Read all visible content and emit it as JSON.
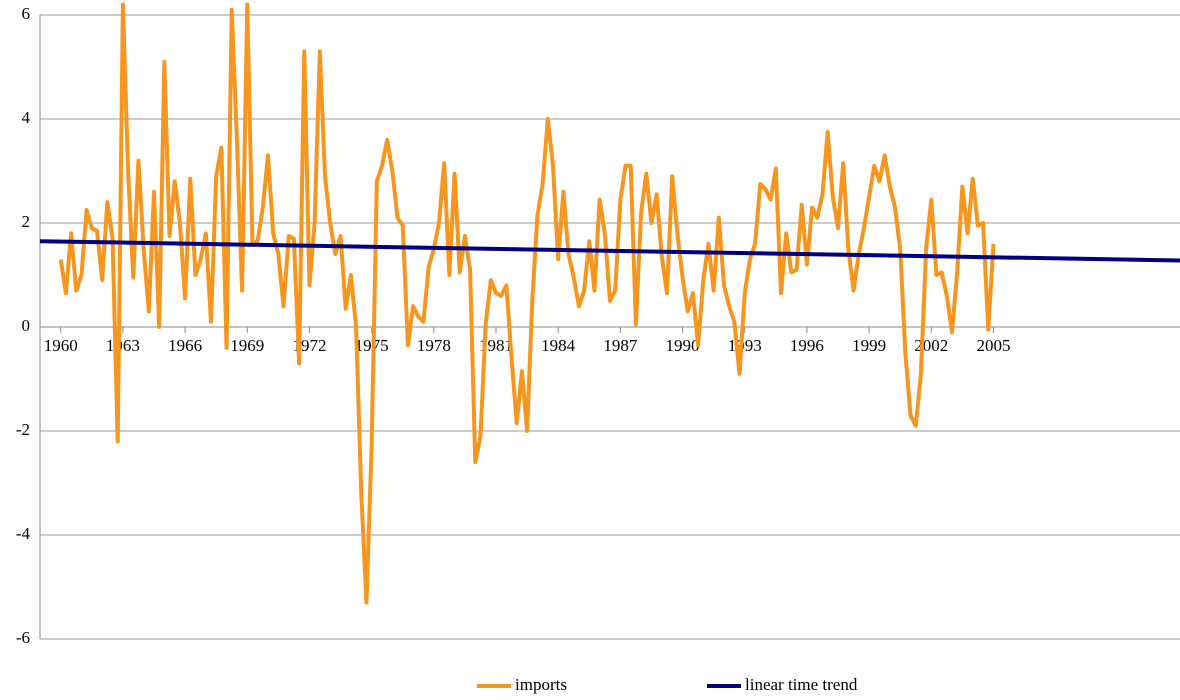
{
  "chart_data": {
    "type": "line",
    "series": [
      {
        "name": "imports",
        "color": "#f7961e",
        "x": [
          1960,
          1960.25,
          1960.5,
          1960.75,
          1961,
          1961.25,
          1961.5,
          1961.75,
          1962,
          1962.25,
          1962.5,
          1962.75,
          1963,
          1963.25,
          1963.5,
          1963.75,
          1964,
          1964.25,
          1964.5,
          1964.75,
          1965,
          1965.25,
          1965.5,
          1965.75,
          1966,
          1966.25,
          1966.5,
          1966.75,
          1967,
          1967.25,
          1967.5,
          1967.75,
          1968,
          1968.25,
          1968.5,
          1968.75,
          1969,
          1969.25,
          1969.5,
          1969.75,
          1970,
          1970.25,
          1970.5,
          1970.75,
          1971,
          1971.25,
          1971.5,
          1971.75,
          1972,
          1972.25,
          1972.5,
          1972.75,
          1973,
          1973.25,
          1973.5,
          1973.75,
          1974,
          1974.25,
          1974.5,
          1974.75,
          1975,
          1975.25,
          1975.5,
          1975.75,
          1976,
          1976.25,
          1976.5,
          1976.75,
          1977,
          1977.25,
          1977.5,
          1977.75,
          1978,
          1978.25,
          1978.5,
          1978.75,
          1979,
          1979.25,
          1979.5,
          1979.75,
          1980,
          1980.25,
          1980.5,
          1980.75,
          1981,
          1981.25,
          1981.5,
          1981.75,
          1982,
          1982.25,
          1982.5,
          1982.75,
          1983,
          1983.25,
          1983.5,
          1983.75,
          1984,
          1984.25,
          1984.5,
          1984.75,
          1985,
          1985.25,
          1985.5,
          1985.75,
          1986,
          1986.25,
          1986.5,
          1986.75,
          1987,
          1987.25,
          1987.5,
          1987.75,
          1988,
          1988.25,
          1988.5,
          1988.75,
          1989,
          1989.25,
          1989.5,
          1989.75,
          1990,
          1990.25,
          1990.5,
          1990.75,
          1991,
          1991.25,
          1991.5,
          1991.75,
          1992,
          1992.25,
          1992.5,
          1992.75,
          1993,
          1993.25,
          1993.5,
          1993.75,
          1994,
          1994.25,
          1994.5,
          1994.75,
          1995,
          1995.25,
          1995.5,
          1995.75,
          1996,
          1996.25,
          1996.5,
          1996.75,
          1997,
          1997.25,
          1997.5,
          1997.75,
          1998,
          1998.25,
          1998.5,
          1998.75,
          1999,
          1999.25,
          1999.5,
          1999.75,
          2000,
          2000.25,
          2000.5,
          2000.75,
          2001,
          2001.25,
          2001.5,
          2001.75,
          2002,
          2002.25,
          2002.5,
          2002.75,
          2003,
          2003.25,
          2003.5,
          2003.75,
          2004,
          2004.25,
          2004.5,
          2004.75,
          2005
        ],
        "values": [
          1.3,
          0.65,
          1.8,
          0.7,
          1.0,
          2.25,
          1.9,
          1.85,
          0.9,
          2.4,
          1.7,
          -2.2,
          6.2,
          3.0,
          0.95,
          3.2,
          1.5,
          0.3,
          2.6,
          0.0,
          5.1,
          1.75,
          2.8,
          2.0,
          0.55,
          2.85,
          1.0,
          1.3,
          1.8,
          0.1,
          2.9,
          3.45,
          -0.4,
          6.1,
          3.6,
          0.7,
          6.2,
          1.6,
          1.65,
          2.3,
          3.3,
          1.8,
          1.4,
          0.4,
          1.75,
          1.7,
          -0.7,
          5.3,
          0.8,
          2.0,
          5.3,
          2.9,
          2.0,
          1.4,
          1.75,
          0.35,
          1.0,
          0.0,
          -3.2,
          -5.3,
          -2.3,
          2.8,
          3.1,
          3.6,
          3.0,
          2.1,
          1.95,
          -0.35,
          0.4,
          0.2,
          0.1,
          1.15,
          1.5,
          2.0,
          3.15,
          1.0,
          2.95,
          1.05,
          1.75,
          1.1,
          -2.6,
          -2.1,
          0.05,
          0.9,
          0.65,
          0.6,
          0.8,
          -0.6,
          -1.85,
          -0.85,
          -2.0,
          0.5,
          2.15,
          2.75,
          4.0,
          3.1,
          1.3,
          2.6,
          1.4,
          0.95,
          0.4,
          0.7,
          1.65,
          0.7,
          2.45,
          1.8,
          0.5,
          0.7,
          2.45,
          3.1,
          3.1,
          0.05,
          2.2,
          2.95,
          2.0,
          2.55,
          1.35,
          0.65,
          2.9,
          1.8,
          0.95,
          0.3,
          0.65,
          -0.35,
          0.9,
          1.6,
          0.7,
          2.1,
          0.8,
          0.4,
          0.1,
          -0.9,
          0.65,
          1.3,
          1.6,
          2.75,
          2.65,
          2.45,
          3.05,
          0.65,
          1.8,
          1.05,
          1.1,
          2.35,
          1.2,
          2.3,
          2.1,
          2.55,
          3.75,
          2.5,
          1.9,
          3.15,
          1.5,
          0.7,
          1.4,
          1.9,
          2.5,
          3.1,
          2.8,
          3.3,
          2.7,
          2.3,
          1.5,
          -0.5,
          -1.7,
          -1.9,
          -0.9,
          1.5,
          2.45,
          1.0,
          1.05,
          0.6,
          -0.1,
          1.05,
          2.7,
          1.8,
          2.85,
          1.95,
          2.0,
          -0.05,
          1.6
        ]
      },
      {
        "name": "linear time trend",
        "color": "#000080",
        "x": [
          1959,
          2014
        ],
        "values": [
          1.65,
          1.28
        ]
      }
    ],
    "xlim": [
      1959,
      2014
    ],
    "xticks": [
      1960,
      1963,
      1966,
      1969,
      1972,
      1975,
      1978,
      1981,
      1984,
      1987,
      1990,
      1993,
      1996,
      1999,
      2002,
      2005
    ],
    "ylim": [
      -6,
      6
    ],
    "yticks": [
      -6,
      -4,
      -2,
      0,
      2,
      4,
      6
    ],
    "grid": true,
    "legend": "bottom"
  }
}
